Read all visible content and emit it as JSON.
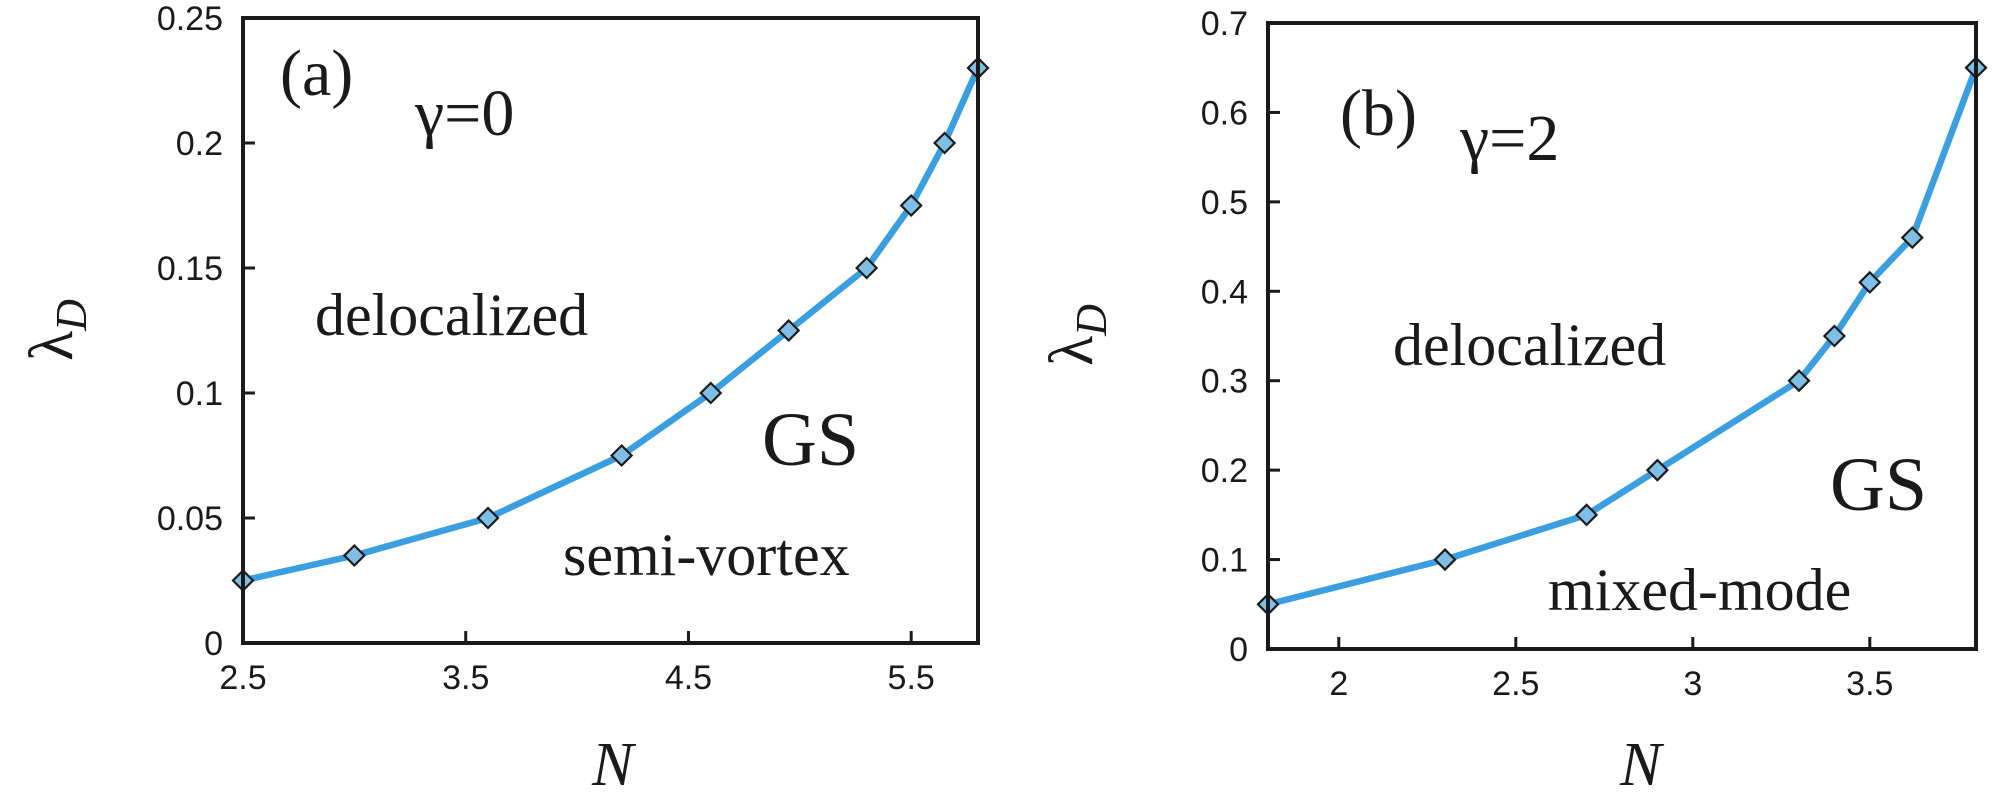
{
  "chart_data": [
    {
      "type": "line",
      "panel_label": "(a)",
      "parameter_label": "γ=0",
      "xlabel": "N",
      "ylabel_main": "λ",
      "ylabel_sub": "D",
      "xlim": [
        2.5,
        5.8
      ],
      "ylim": [
        0,
        0.25
      ],
      "xticks": [
        2.5,
        3.5,
        4.5,
        5.5
      ],
      "xtick_labels": [
        "2.5",
        "3.5",
        "4.5",
        "5.5"
      ],
      "yticks": [
        0,
        0.05,
        0.1,
        0.15,
        0.2,
        0.25
      ],
      "ytick_labels": [
        "0",
        "0.05",
        "0.1",
        "0.15",
        "0.2",
        "0.25"
      ],
      "series": [
        {
          "x": [
            2.5,
            3.0,
            3.6,
            4.2,
            4.6,
            4.95,
            5.3,
            5.5,
            5.65,
            5.8
          ],
          "y": [
            0.025,
            0.035,
            0.05,
            0.075,
            0.1,
            0.125,
            0.15,
            0.175,
            0.2,
            0.23
          ],
          "color": "#3a9fe0",
          "marker": "diamond"
        }
      ],
      "region_labels": {
        "upper": "delocalized",
        "gs": "GS",
        "lower": "semi-vortex"
      }
    },
    {
      "type": "line",
      "panel_label": "(b)",
      "parameter_label": "γ=2",
      "xlabel": "N",
      "ylabel_main": "λ",
      "ylabel_sub": "D",
      "xlim": [
        1.8,
        3.8
      ],
      "ylim": [
        0,
        0.7
      ],
      "xticks": [
        2,
        2.5,
        3,
        3.5
      ],
      "xtick_labels": [
        "2",
        "2.5",
        "3",
        "3.5"
      ],
      "yticks": [
        0,
        0.1,
        0.2,
        0.3,
        0.4,
        0.5,
        0.6,
        0.7
      ],
      "ytick_labels": [
        "0",
        "0.1",
        "0.2",
        "0.3",
        "0.4",
        "0.5",
        "0.6",
        "0.7"
      ],
      "series": [
        {
          "x": [
            1.8,
            2.3,
            2.7,
            2.9,
            3.3,
            3.4,
            3.5,
            3.62,
            3.8
          ],
          "y": [
            0.05,
            0.1,
            0.15,
            0.2,
            0.3,
            0.35,
            0.41,
            0.46,
            0.65
          ],
          "color": "#3a9fe0",
          "marker": "diamond"
        }
      ],
      "region_labels": {
        "upper": "delocalized",
        "gs": "GS",
        "lower": "mixed-mode"
      }
    }
  ]
}
